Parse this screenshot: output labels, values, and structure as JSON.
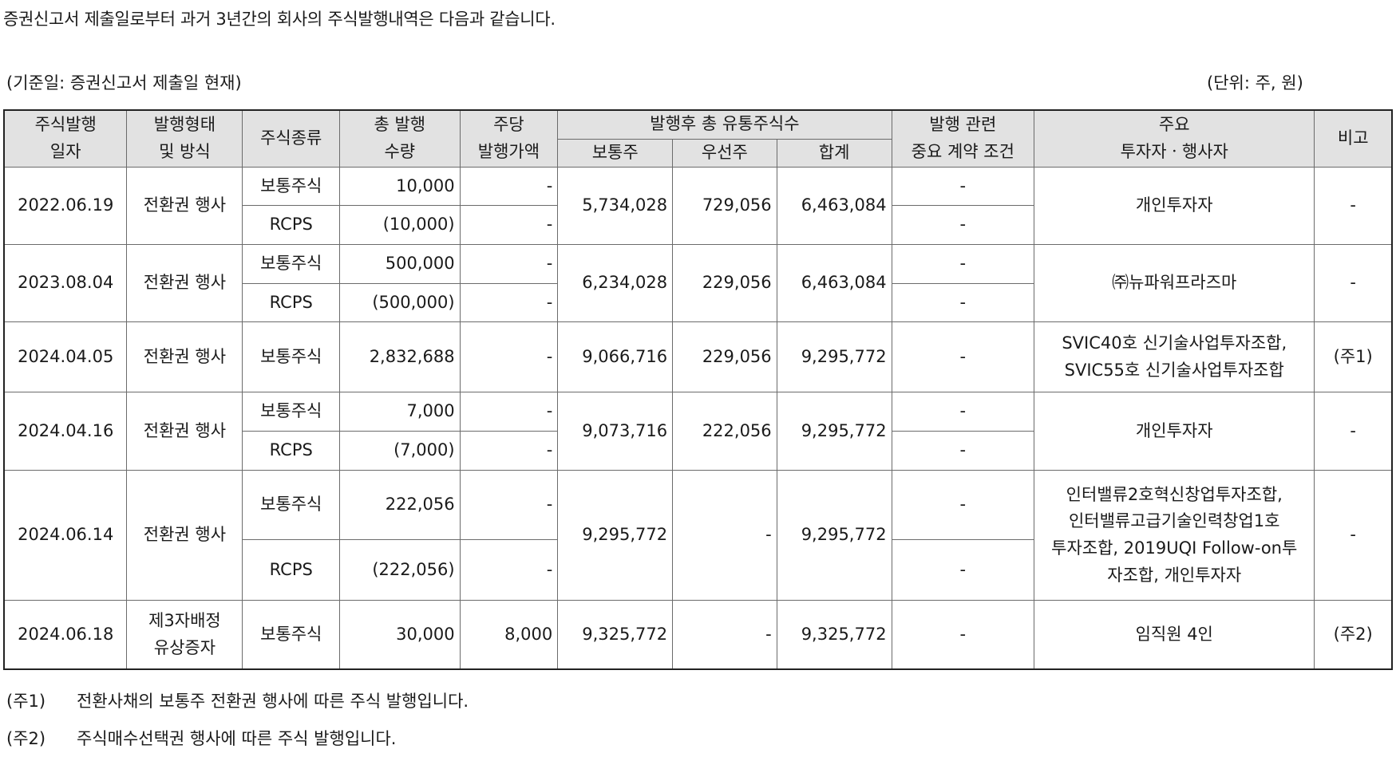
{
  "intro": "증권신고서 제출일로부터 과거 3년간의 회사의 주식발행내역은 다음과 같습니다.",
  "basis": "(기준일: 증권신고서 제출일 현재)",
  "unit": "(단위: 주, 원)",
  "headers": {
    "date": [
      "주식발행",
      "일자"
    ],
    "form": [
      "발행형태",
      "및 방식"
    ],
    "stock_type": "주식종류",
    "qty": [
      "총 발행",
      "수량"
    ],
    "price": [
      "주당",
      "발행가액"
    ],
    "after_total": "발행후 총 유통주식수",
    "common": "보통주",
    "preferred": "우선주",
    "sum": "합계",
    "contract": [
      "발행 관련",
      "중요 계약 조건"
    ],
    "investors": [
      "주요",
      "투자자ㆍ행사자"
    ],
    "remark": "비고"
  },
  "rows": [
    {
      "date": "2022.06.19",
      "form": [
        "전환권 행사"
      ],
      "lines": [
        {
          "type": "보통주식",
          "qty": "10,000",
          "price": "-",
          "contract": "-"
        },
        {
          "type": "RCPS",
          "qty": "(10,000)",
          "price": "-",
          "contract": "-"
        }
      ],
      "common": "5,734,028",
      "preferred": "729,056",
      "sum": "6,463,084",
      "investors": [
        "개인투자자"
      ],
      "remark": "-"
    },
    {
      "date": "2023.08.04",
      "form": [
        "전환권 행사"
      ],
      "lines": [
        {
          "type": "보통주식",
          "qty": "500,000",
          "price": "-",
          "contract": "-"
        },
        {
          "type": "RCPS",
          "qty": "(500,000)",
          "price": "-",
          "contract": "-"
        }
      ],
      "common": "6,234,028",
      "preferred": "229,056",
      "sum": "6,463,084",
      "investors": [
        "㈜뉴파워프라즈마"
      ],
      "remark": "-"
    },
    {
      "date": "2024.04.05",
      "form": [
        "전환권 행사"
      ],
      "lines": [
        {
          "type": "보통주식",
          "qty": "2,832,688",
          "price": "-",
          "contract": "-"
        }
      ],
      "common": "9,066,716",
      "preferred": "229,056",
      "sum": "9,295,772",
      "investors": [
        "SVIC40호 신기술사업투자조합,",
        "SVIC55호 신기술사업투자조합"
      ],
      "remark": "(주1)"
    },
    {
      "date": "2024.04.16",
      "form": [
        "전환권 행사"
      ],
      "lines": [
        {
          "type": "보통주식",
          "qty": "7,000",
          "price": "-",
          "contract": "-"
        },
        {
          "type": "RCPS",
          "qty": "(7,000)",
          "price": "-",
          "contract": "-"
        }
      ],
      "common": "9,073,716",
      "preferred": "222,056",
      "sum": "9,295,772",
      "investors": [
        "개인투자자"
      ],
      "remark": "-"
    },
    {
      "date": "2024.06.14",
      "form": [
        "전환권 행사"
      ],
      "lines": [
        {
          "type": "보통주식",
          "qty": "222,056",
          "price": "-",
          "contract": "-"
        },
        {
          "type": "RCPS",
          "qty": "(222,056)",
          "price": "-",
          "contract": "-"
        }
      ],
      "common": "9,295,772",
      "preferred": "-",
      "sum": "9,295,772",
      "investors": [
        "인터밸류2호혁신창업투자조합,",
        "인터밸류고급기술인력창업1호",
        "투자조합, 2019UQI Follow-on투",
        "자조합, 개인투자자"
      ],
      "remark": "-"
    },
    {
      "date": "2024.06.18",
      "form": [
        "제3자배정",
        "유상증자"
      ],
      "lines": [
        {
          "type": "보통주식",
          "qty": "30,000",
          "price": "8,000",
          "contract": "-"
        }
      ],
      "common": "9,325,772",
      "preferred": "-",
      "sum": "9,325,772",
      "investors": [
        "임직원 4인"
      ],
      "remark": "(주2)"
    }
  ],
  "notes": [
    {
      "mark": "(주1)",
      "text": "전환사채의 보통주 전환권 행사에 따른 주식 발행입니다."
    },
    {
      "mark": "(주2)",
      "text": "주식매수선택권 행사에 따른 주식 발행입니다."
    }
  ]
}
